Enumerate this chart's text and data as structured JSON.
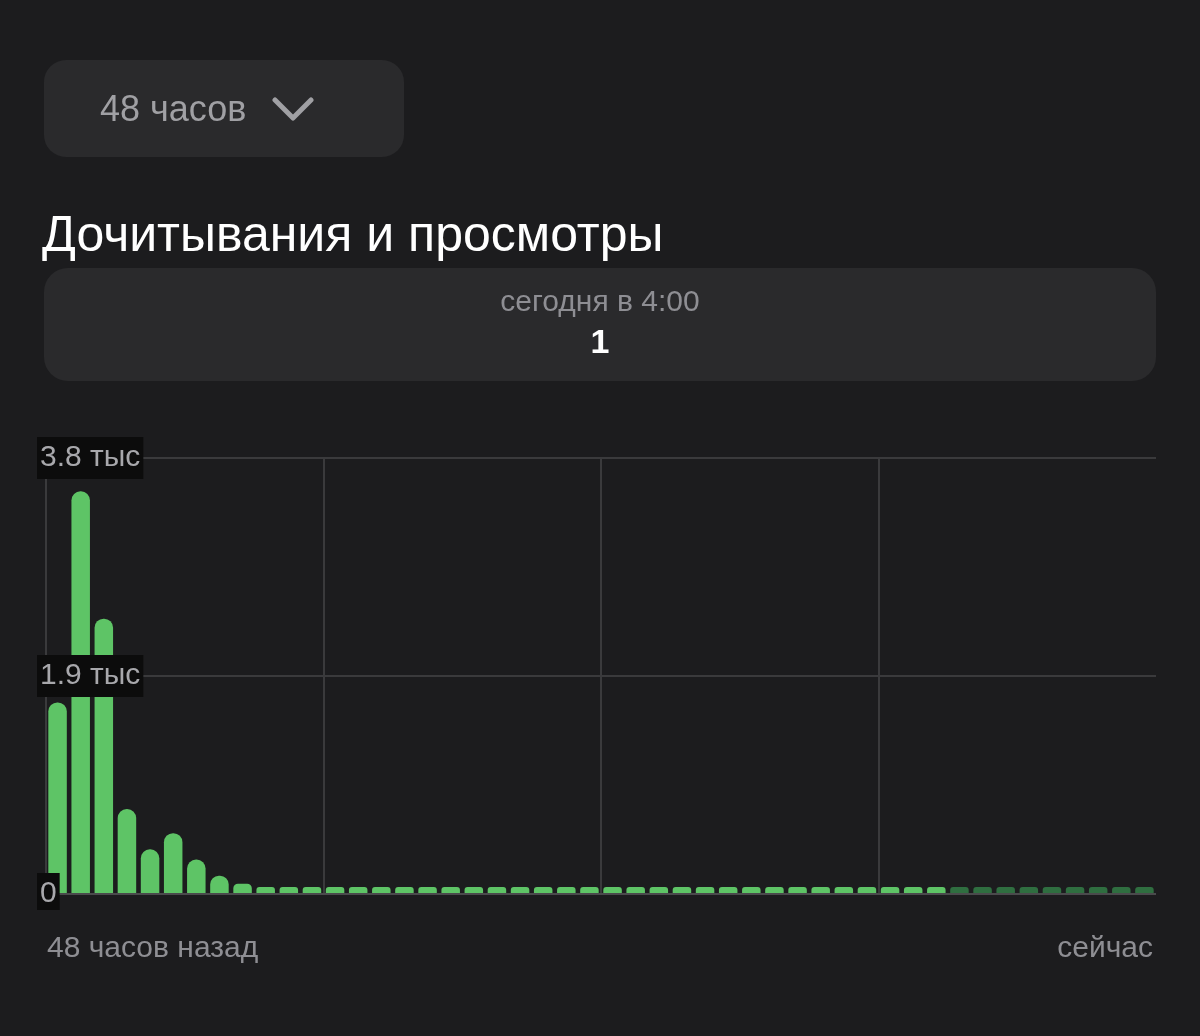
{
  "chart_data": {
    "type": "bar",
    "title": "Дочитывания и просмотры",
    "annotations": [
      "48 часов",
      "сегодня в 4:00",
      "1",
      "48 часов назад",
      "сейчас"
    ],
    "tick_labels": "y",
    "categories": [
      null,
      null,
      null,
      null,
      null,
      null,
      null,
      null,
      null,
      null,
      null,
      null,
      null,
      null,
      null,
      null,
      null,
      null,
      null,
      null,
      null,
      null,
      null,
      null,
      null,
      null,
      null,
      null,
      null,
      null,
      null,
      null,
      null,
      null,
      null,
      null,
      null,
      null,
      null,
      null,
      null,
      null,
      null,
      null,
      null,
      null,
      null,
      null
    ],
    "values": [
      1.67,
      3.51,
      2.4,
      0.74,
      0.39,
      0.53,
      0.3,
      0.16,
      0.09,
      0.06,
      0.06,
      0.06,
      0.06,
      0.06,
      0.06,
      0.06,
      0.06,
      0.06,
      0.06,
      0.06,
      0.06,
      0.06,
      0.06,
      0.06,
      0.06,
      0.06,
      0.06,
      0.06,
      0.06,
      0.06,
      0.06,
      0.06,
      0.06,
      0.06,
      0.06,
      0.06,
      0.06,
      0.06,
      0.06,
      0.06,
      0.06,
      0.06,
      0.06,
      0.06,
      0.06,
      0.06,
      0.06,
      0.06
    ],
    "colors": [
      "#5ec466",
      "#5ec466",
      "#5ec466",
      "#5ec466",
      "#5ec466",
      "#5ec466",
      "#5ec466",
      "#5ec466",
      "#5ec466",
      "#5ec466",
      "#5ec466",
      "#5ec466",
      "#5ec466",
      "#5ec466",
      "#5ec466",
      "#5ec466",
      "#5ec466",
      "#5ec466",
      "#5ec466",
      "#5ec466",
      "#5ec466",
      "#5ec466",
      "#5ec466",
      "#5ec466",
      "#5ec466",
      "#5ec466",
      "#5ec466",
      "#5ec466",
      "#5ec466",
      "#5ec466",
      "#5ec466",
      "#5ec466",
      "#5ec466",
      "#5ec466",
      "#5ec466",
      "#5ec466",
      "#5ec466",
      "#5ec466",
      "#5ec466",
      "#2f6e40",
      "#2f6e40",
      "#2f6e40",
      "#2f6e40",
      "#2f6e40",
      "#2f6e40",
      "#2f6e40",
      "#2f6e40",
      "#2f6e40"
    ],
    "ylim": [
      0,
      3.8
    ],
    "yticks": [
      0,
      {
        "value": 1.9,
        "label": "1.9 тыс"
      },
      {
        "value": 3.8,
        "label": "3.8 тыс"
      }
    ],
    "grid": true,
    "legend": false
  }
}
